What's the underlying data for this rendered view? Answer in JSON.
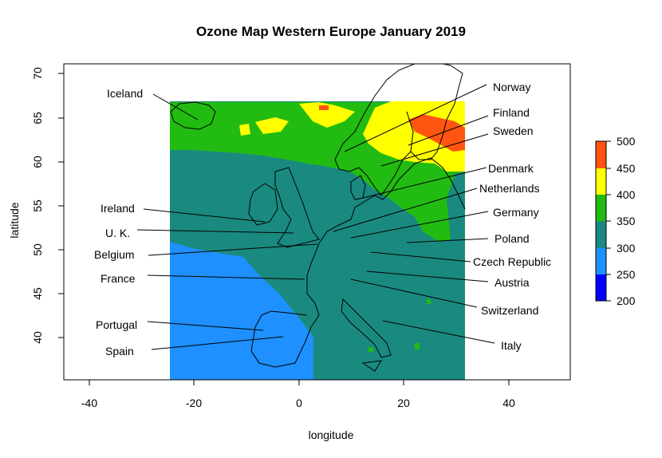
{
  "title": "Ozone Map Western Europe January 2019",
  "axes": {
    "xlabel": "longitude",
    "ylabel": "latitude",
    "xticks": [
      "-40",
      "-20",
      "0",
      "20",
      "40"
    ],
    "yticks": [
      "40",
      "45",
      "50",
      "55",
      "60",
      "65",
      "70"
    ]
  },
  "colors": {
    "band_200_250": "#0000ff",
    "band_250_300": "#1e90ff",
    "band_300_350": "#1a8a80",
    "band_350_400": "#22bb11",
    "band_400_450": "#ffff00",
    "band_450_500": "#ff5511"
  },
  "legend": {
    "ticks": [
      "500",
      "450",
      "400",
      "350",
      "300",
      "250",
      "200"
    ]
  },
  "labels": {
    "iceland": "Iceland",
    "norway": "Norway",
    "finland": "Finland",
    "sweden": "Sweden",
    "denmark": "Denmark",
    "netherlands": "Netherlands",
    "germany": "Germany",
    "poland": "Poland",
    "czech": "Czech Republic",
    "austria": "Austria",
    "switzerland": "Switzerland",
    "italy": "Italy",
    "ireland": "Ireland",
    "uk": "U. K.",
    "belgium": "Belgium",
    "france": "France",
    "portugal": "Portugal",
    "spain": "Spain"
  },
  "chart_data": {
    "type": "heatmap",
    "title": "Ozone Map Western Europe January 2019",
    "xlabel": "longitude",
    "ylabel": "latitude",
    "xlim": [
      -45,
      52
    ],
    "ylim": [
      35,
      71
    ],
    "grid": false,
    "data_extent": {
      "lon": [
        -24.5,
        31.5
      ],
      "lat": [
        35,
        67
      ]
    },
    "colorbar": {
      "breaks": [
        200,
        250,
        300,
        350,
        400,
        450,
        500
      ],
      "colors": [
        "#0000ff",
        "#1e90ff",
        "#1a8a80",
        "#22bb11",
        "#ffff00",
        "#ff5511"
      ]
    },
    "approx_regions": [
      {
        "desc": "southwest Atlantic / Iberia",
        "range": "250-300"
      },
      {
        "desc": "central Europe",
        "range": "300-350"
      },
      {
        "desc": "north Atlantic to Iceland",
        "range": "350-400"
      },
      {
        "desc": "Scandinavia",
        "range": "400-450"
      },
      {
        "desc": "Finland / Baltic patches",
        "range": "450-500"
      }
    ],
    "annotations": [
      "Iceland",
      "Norway",
      "Finland",
      "Sweden",
      "Denmark",
      "Netherlands",
      "Germany",
      "Poland",
      "Czech Republic",
      "Austria",
      "Switzerland",
      "Italy",
      "Ireland",
      "U. K.",
      "Belgium",
      "France",
      "Portugal",
      "Spain"
    ]
  }
}
